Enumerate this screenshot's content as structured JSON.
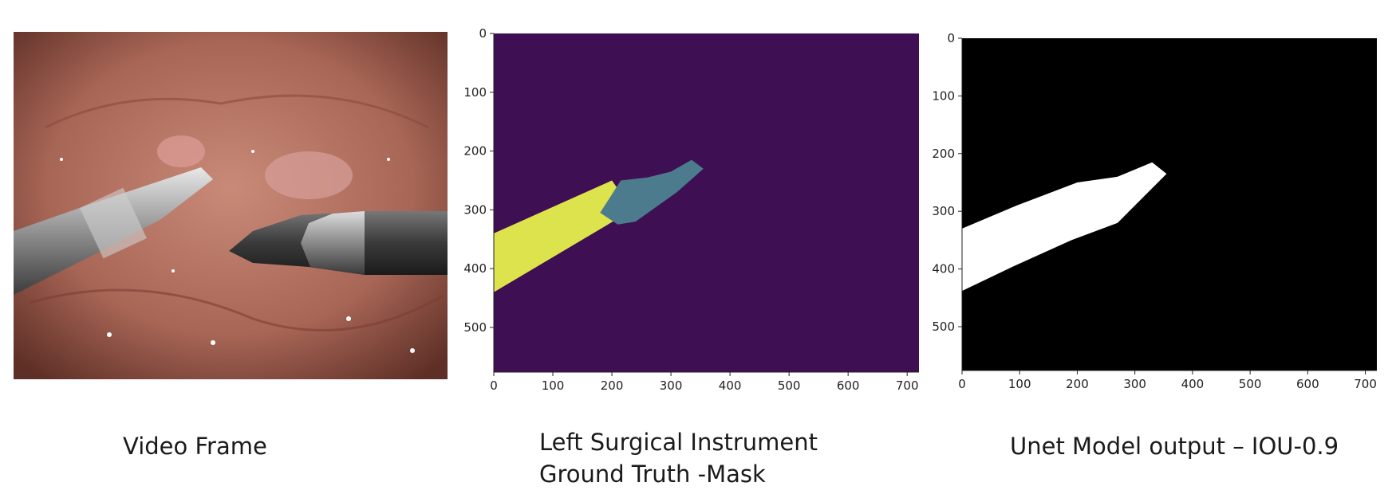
{
  "panels": {
    "video": {
      "caption": "Video Frame"
    },
    "ground_truth": {
      "caption_line1": "Left Surgical Instrument",
      "caption_line2": "Ground Truth -Mask"
    },
    "unet": {
      "caption": "Unet Model output – IOU-0.9"
    }
  },
  "chart_data": [
    {
      "type": "heatmap",
      "name": "ground-truth-mask",
      "x_ticks": [
        0,
        100,
        200,
        300,
        400,
        500,
        600,
        700
      ],
      "y_ticks": [
        0,
        100,
        200,
        300,
        400,
        500
      ],
      "xlim": [
        0,
        720
      ],
      "ylim": [
        576,
        0
      ],
      "colors": {
        "background": "#3f0f54",
        "shaft": "#dde34c",
        "tip": "#4c7b8e"
      },
      "regions": [
        {
          "label": "shaft",
          "polygon": [
            [
              0,
              340
            ],
            [
              200,
              250
            ],
            [
              235,
              300
            ],
            [
              0,
              440
            ]
          ]
        },
        {
          "label": "tip",
          "polygon": [
            [
              180,
              305
            ],
            [
              215,
              250
            ],
            [
              260,
              245
            ],
            [
              300,
              235
            ],
            [
              335,
              215
            ],
            [
              355,
              230
            ],
            [
              310,
              270
            ],
            [
              240,
              320
            ],
            [
              210,
              325
            ]
          ]
        }
      ]
    },
    {
      "type": "heatmap",
      "name": "unet-model-output",
      "x_ticks": [
        0,
        100,
        200,
        300,
        400,
        500,
        600,
        700
      ],
      "y_ticks": [
        0,
        100,
        200,
        300,
        400,
        500
      ],
      "xlim": [
        0,
        720
      ],
      "ylim": [
        576,
        0
      ],
      "colors": {
        "background": "#000000",
        "foreground": "#ffffff"
      },
      "regions": [
        {
          "label": "predicted-instrument",
          "polygon": [
            [
              0,
              330
            ],
            [
              95,
              290
            ],
            [
              200,
              250
            ],
            [
              270,
              240
            ],
            [
              330,
              215
            ],
            [
              355,
              235
            ],
            [
              300,
              290
            ],
            [
              270,
              320
            ],
            [
              190,
              350
            ],
            [
              90,
              395
            ],
            [
              0,
              438
            ]
          ]
        }
      ]
    }
  ]
}
